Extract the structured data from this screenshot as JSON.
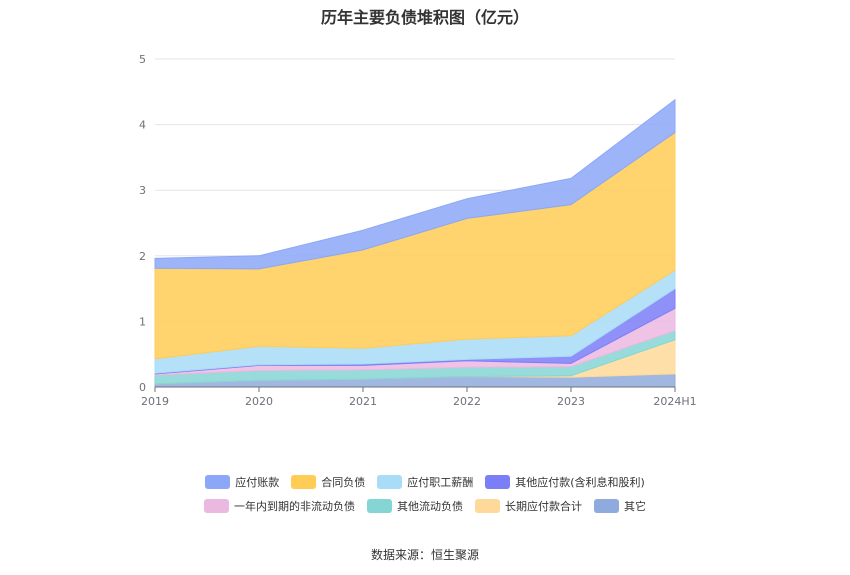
{
  "title": "历年主要负债堆积图（亿元）",
  "source": "数据来源：恒生聚源",
  "chart_data": {
    "type": "area",
    "stacked": true,
    "title": "历年主要负债堆积图（亿元）",
    "categories": [
      "2019",
      "2020",
      "2021",
      "2022",
      "2023",
      "2024H1"
    ],
    "ylim": [
      0,
      5
    ],
    "yticks": [
      0,
      1,
      2,
      3,
      4,
      5
    ],
    "grid": true,
    "legend_position": "bottom",
    "series": [
      {
        "name": "其它",
        "color": "#8faadc",
        "values": [
          0.05,
          0.1,
          0.12,
          0.16,
          0.15,
          0.2
        ]
      },
      {
        "name": "长期应付款合计",
        "color": "#ffd999",
        "values": [
          0,
          0,
          0,
          0,
          0.02,
          0.52
        ]
      },
      {
        "name": "其他流动负债",
        "color": "#86d5d5",
        "values": [
          0.13,
          0.15,
          0.14,
          0.14,
          0.14,
          0.14
        ]
      },
      {
        "name": "一年内到期的非流动负债",
        "color": "#ebb8e0",
        "values": [
          0.02,
          0.08,
          0.07,
          0.1,
          0.05,
          0.34
        ]
      },
      {
        "name": "其他应付款(含利息和股利)",
        "color": "#7b7ef7",
        "values": [
          0.01,
          0.01,
          0.02,
          0.02,
          0.11,
          0.3
        ]
      },
      {
        "name": "应付职工薪酬",
        "color": "#a8dcf7",
        "values": [
          0.22,
          0.28,
          0.24,
          0.31,
          0.31,
          0.28
        ]
      },
      {
        "name": "合同负债",
        "color": "#ffcc55",
        "values": [
          1.38,
          1.18,
          1.5,
          1.84,
          2.0,
          2.1
        ]
      },
      {
        "name": "应付账款",
        "color": "#8ca7f7",
        "values": [
          0.15,
          0.2,
          0.3,
          0.3,
          0.4,
          0.5
        ]
      }
    ],
    "legend_rows": [
      [
        "应付账款",
        "合同负债",
        "应付职工薪酬",
        "其他应付款(含利息和股利)"
      ],
      [
        "一年内到期的非流动负债",
        "其他流动负债",
        "长期应付款合计",
        "其它"
      ]
    ]
  }
}
